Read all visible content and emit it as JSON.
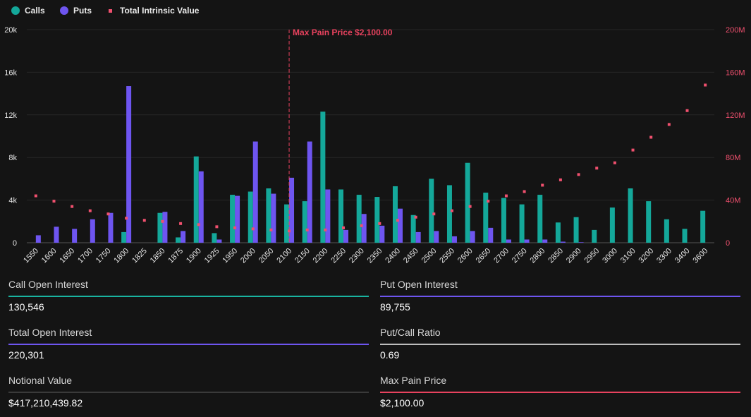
{
  "legend": {
    "calls": "Calls",
    "puts": "Puts",
    "intrinsic": "Total Intrinsic Value"
  },
  "colors": {
    "calls": "#14a89a",
    "puts": "#6e55f0",
    "intrinsic": "#f0506e",
    "pain_line": "#e8425e",
    "call_oi_line": "#19b3a0",
    "put_oi_line": "#6e55f0",
    "total_oi_line": "#6e55f0",
    "ratio_line": "#bdbdbd",
    "notional_line": "#3a3a3a",
    "maxpain_line": "#e8425e"
  },
  "chart_data": {
    "type": "bar",
    "categories": [
      "1550",
      "1600",
      "1650",
      "1700",
      "1750",
      "1800",
      "1825",
      "1850",
      "1875",
      "1900",
      "1925",
      "1950",
      "2000",
      "2050",
      "2100",
      "2150",
      "2200",
      "2250",
      "2300",
      "2350",
      "2400",
      "2450",
      "2500",
      "2550",
      "2600",
      "2650",
      "2700",
      "2750",
      "2800",
      "2850",
      "2900",
      "2950",
      "3000",
      "3100",
      "3200",
      "3300",
      "3400",
      "3600"
    ],
    "series": [
      {
        "name": "Calls",
        "values": [
          0,
          0,
          0,
          0,
          0,
          1000,
          0,
          2800,
          500,
          8100,
          900,
          4500,
          4800,
          5100,
          3600,
          3900,
          12300,
          5000,
          4500,
          4300,
          5300,
          2600,
          6000,
          5400,
          7500,
          4700,
          4200,
          3600,
          4500,
          1900,
          2400,
          1200,
          3300,
          5100,
          3900,
          2200,
          1300,
          3000
        ]
      },
      {
        "name": "Puts",
        "values": [
          700,
          1500,
          1300,
          2200,
          2800,
          14700,
          0,
          2900,
          1100,
          6700,
          300,
          4400,
          9500,
          4600,
          6100,
          9500,
          5000,
          1200,
          2700,
          1600,
          3200,
          1000,
          1100,
          600,
          1100,
          1400,
          300,
          300,
          300,
          100,
          50,
          0,
          0,
          0,
          0,
          0,
          0,
          0
        ]
      },
      {
        "name": "Total Intrinsic Value",
        "values": [
          44,
          39,
          34,
          30,
          27,
          23,
          21,
          20,
          18,
          17,
          15,
          14,
          13,
          12,
          11,
          12,
          12,
          14,
          16,
          18,
          21,
          24,
          27,
          30,
          34,
          39,
          44,
          48,
          54,
          59,
          64,
          70,
          75,
          87,
          99,
          111,
          124,
          148
        ]
      }
    ],
    "y_left": {
      "ticks": [
        "0",
        "4k",
        "8k",
        "12k",
        "16k",
        "20k"
      ],
      "lim": [
        0,
        20000
      ]
    },
    "y_right": {
      "ticks": [
        "0",
        "40M",
        "80M",
        "120M",
        "160M",
        "200M"
      ],
      "lim": [
        0,
        200
      ],
      "unit": "M"
    },
    "max_pain": {
      "category": "2100",
      "label": "Max Pain Price $2,100.00"
    },
    "grid": true
  },
  "stats": {
    "call_oi": {
      "label": "Call Open Interest",
      "value": "130,546"
    },
    "put_oi": {
      "label": "Put Open Interest",
      "value": "89,755"
    },
    "total_oi": {
      "label": "Total Open Interest",
      "value": "220,301"
    },
    "ratio": {
      "label": "Put/Call Ratio",
      "value": "0.69"
    },
    "notional": {
      "label": "Notional Value",
      "value": "$417,210,439.82"
    },
    "maxpain": {
      "label": "Max Pain Price",
      "value": "$2,100.00"
    }
  }
}
